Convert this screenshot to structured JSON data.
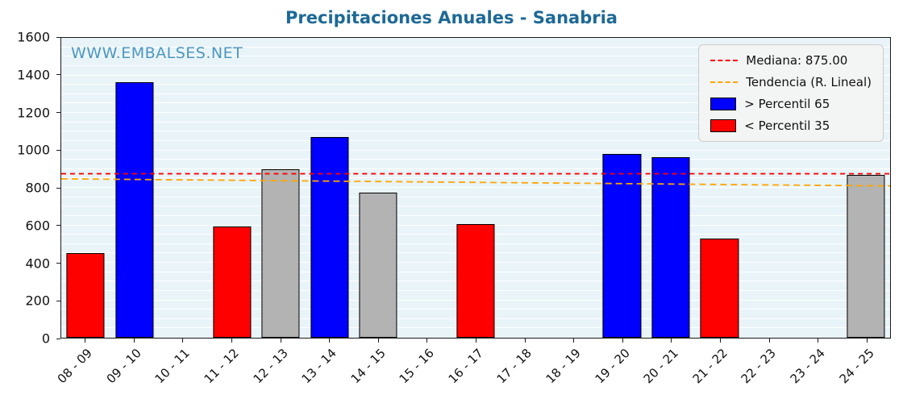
{
  "title": "Precipitaciones Anuales - Sanabria",
  "watermark": "WWW.EMBALSES.NET",
  "colors": {
    "title": "#1d6996",
    "watermark": "#4d97be",
    "plot_bg": "#e9f4f9",
    "grid": "#ffffff",
    "bar_blue": "#0000ff",
    "bar_red": "#ff0000",
    "bar_gray": "#b3b3b3",
    "median_line": "#ff0000",
    "trend_line": "#ffa500"
  },
  "legend": {
    "median_label": "Mediana: 875.00",
    "trend_label": "Tendencia (R. Lineal)",
    "above_label": "> Percentil 65",
    "below_label": "< Percentil 35"
  },
  "chart_data": {
    "type": "bar",
    "title": "Precipitaciones Anuales - Sanabria",
    "xlabel": "",
    "ylabel": "",
    "ylim": [
      0,
      1600
    ],
    "yticks": [
      0,
      200,
      400,
      600,
      800,
      1000,
      1200,
      1400,
      1600
    ],
    "grid": true,
    "legend_position": "upper right",
    "categories": [
      "08 - 09",
      "09 - 10",
      "10 - 11",
      "11 - 12",
      "12 - 13",
      "13 - 14",
      "14 - 15",
      "15 - 16",
      "16 - 17",
      "17 - 18",
      "18 - 19",
      "19 - 20",
      "20 - 21",
      "21 - 22",
      "22 - 23",
      "23 - 24",
      "24 - 25"
    ],
    "values": [
      450,
      1365,
      null,
      595,
      900,
      1070,
      775,
      null,
      605,
      null,
      null,
      980,
      965,
      530,
      null,
      null,
      870
    ],
    "bar_colors": [
      "red",
      "blue",
      null,
      "red",
      "gray",
      "blue",
      "gray",
      null,
      "red",
      null,
      null,
      "blue",
      "blue",
      "red",
      null,
      null,
      "gray"
    ],
    "median": 875.0,
    "trend_line": {
      "start_value": 848,
      "end_value": 810
    }
  }
}
